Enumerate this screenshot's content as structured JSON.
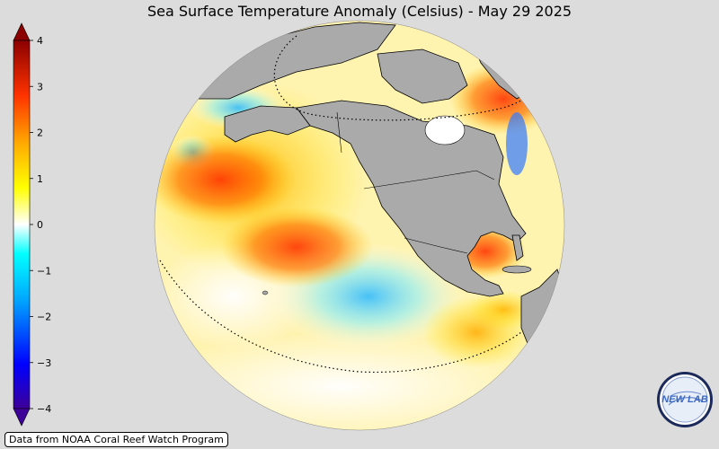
{
  "title": "Sea Surface Temperature Anomaly (Celsius) - May 29 2025",
  "colorbar": {
    "ticks": [
      "4",
      "3",
      "2",
      "1",
      "0",
      "−1",
      "−2",
      "−3",
      "−4"
    ],
    "min": -4,
    "max": 4,
    "gradient_colors": [
      "#3d0099",
      "#0000ff",
      "#00aaff",
      "#00ffff",
      "#ffffff",
      "#ffff00",
      "#ffaa00",
      "#ff3300",
      "#8b0000"
    ]
  },
  "map": {
    "land_color": "#aaaaaa",
    "ocean_base_color": "#fff3b0",
    "border_color": "#000000"
  },
  "credit": "Data from NOAA Coral Reef Watch Program",
  "logo": {
    "text": "NEW LAB",
    "colors": {
      "ring": "#1b2a5a",
      "text": "#3a68c4"
    }
  }
}
